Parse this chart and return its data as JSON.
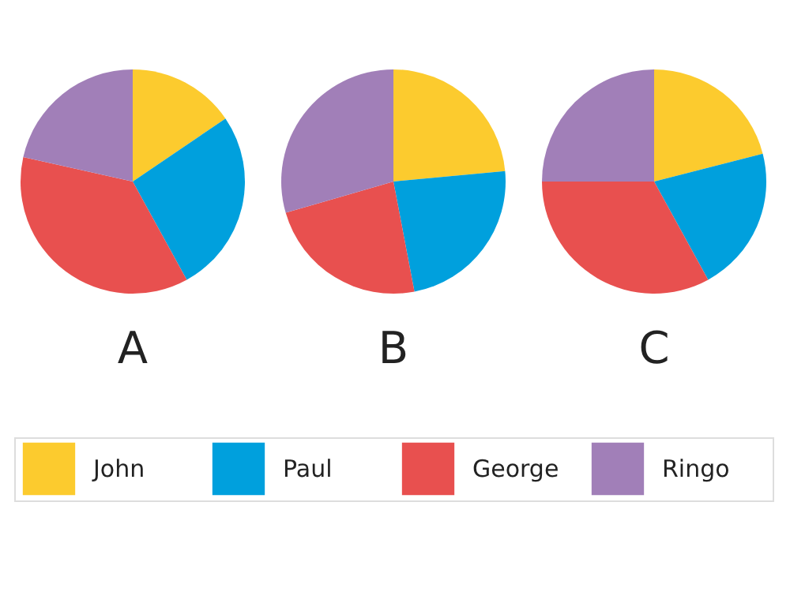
{
  "chart_data": [
    {
      "type": "pie",
      "title": "A",
      "categories": [
        "John",
        "Paul",
        "George",
        "Ringo"
      ],
      "values": [
        15.5,
        26.5,
        36.5,
        21.5
      ],
      "colors": [
        "#fccb2e",
        "#00a0dd",
        "#e8504f",
        "#a17fb8"
      ],
      "legend": "bottom"
    },
    {
      "type": "pie",
      "title": "B",
      "categories": [
        null,
        null,
        null,
        null
      ],
      "values": [
        23.5,
        23.5,
        23.5,
        29.5
      ],
      "colors": [
        "#fccb2e",
        "#00a0dd",
        "#e8504f",
        "#a17fb8"
      ]
    },
    {
      "type": "pie",
      "title": "C",
      "categories": [
        null,
        null,
        null,
        null
      ],
      "values": [
        21,
        21,
        33,
        25
      ],
      "colors": [
        "#fccb2e",
        "#00a0dd",
        "#e8504f",
        "#a17fb8"
      ]
    }
  ]
}
